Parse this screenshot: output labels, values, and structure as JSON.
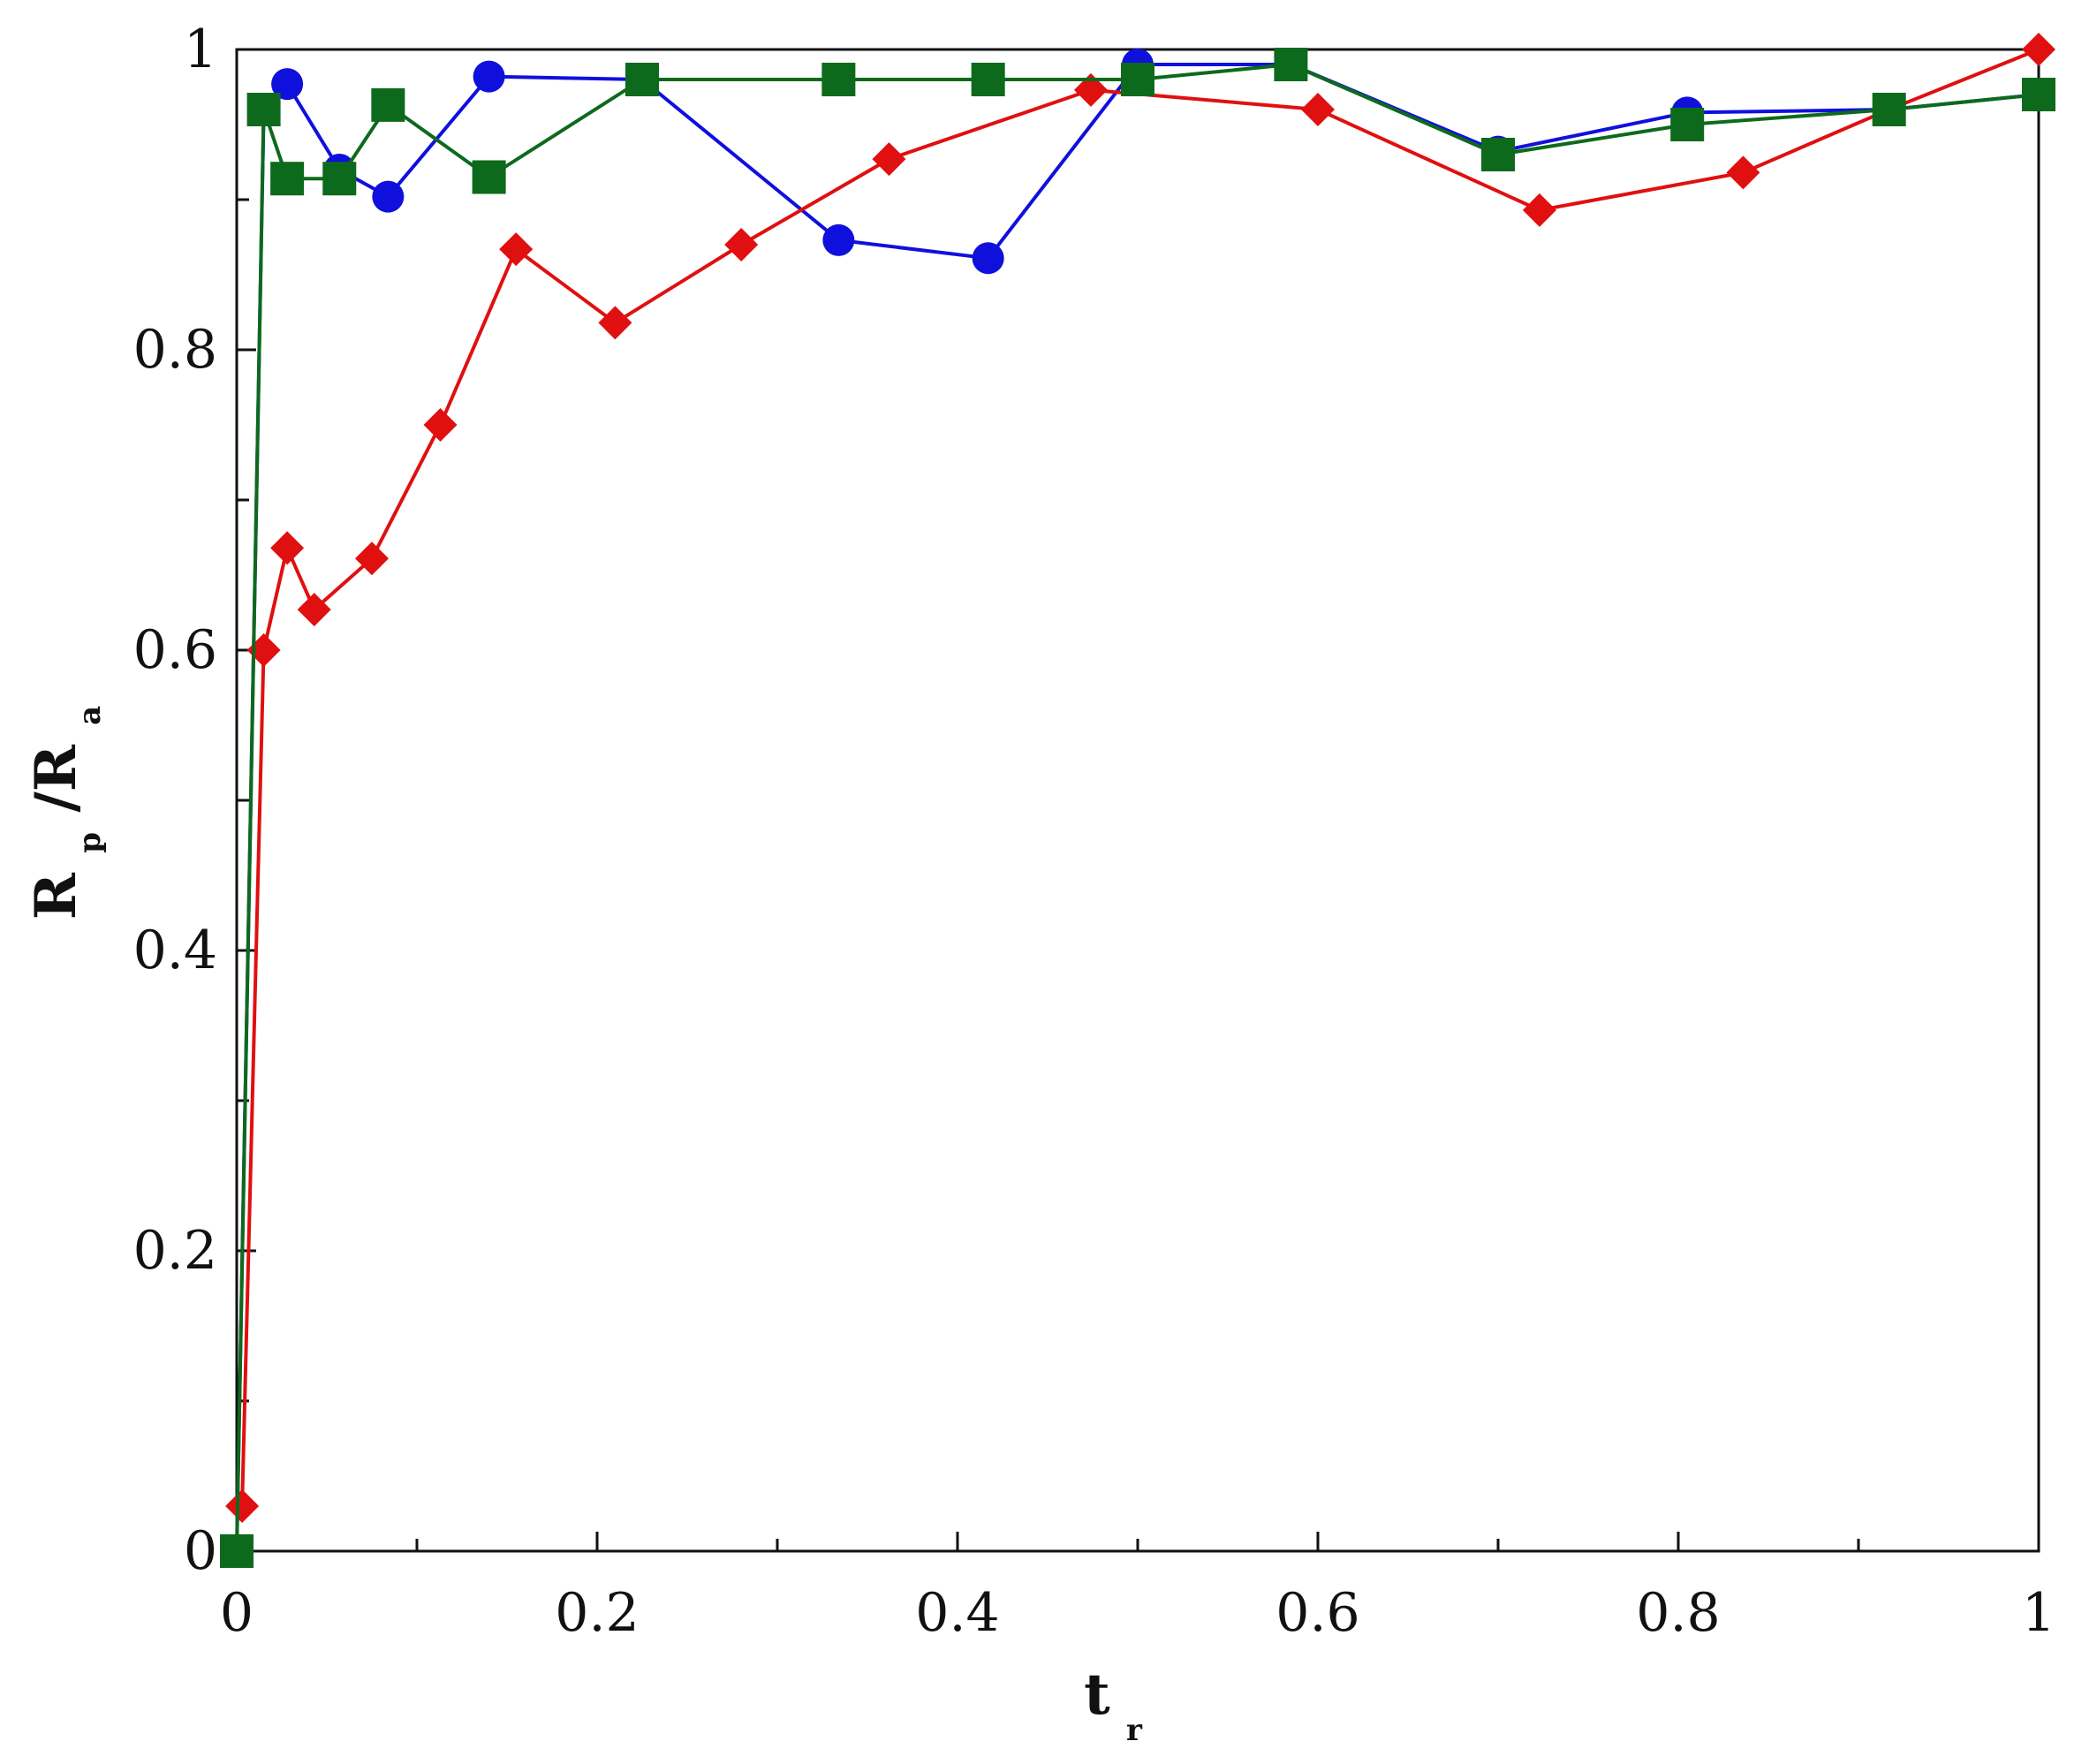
{
  "chart_data": {
    "type": "line",
    "title": "",
    "xlabel": {
      "main": "t",
      "sub": "r"
    },
    "ylabel": {
      "main": "R",
      "sub1": "p",
      "sep": "/R",
      "sub2": "a"
    },
    "xlim": [
      0,
      1
    ],
    "ylim": [
      0,
      1
    ],
    "x_ticks": [
      {
        "value": 0,
        "label": "0"
      },
      {
        "value": 0.2,
        "label": "0.2"
      },
      {
        "value": 0.4,
        "label": "0.4"
      },
      {
        "value": 0.6,
        "label": "0.6"
      },
      {
        "value": 0.8,
        "label": "0.8"
      },
      {
        "value": 1,
        "label": "1"
      }
    ],
    "y_ticks": [
      {
        "value": 0,
        "label": "0"
      },
      {
        "value": 0.2,
        "label": "0.2"
      },
      {
        "value": 0.4,
        "label": "0.4"
      },
      {
        "value": 0.6,
        "label": "0.6"
      },
      {
        "value": 0.8,
        "label": "0.8"
      },
      {
        "value": 1,
        "label": "1"
      }
    ],
    "x_minor_ticks": [
      0.1,
      0.3,
      0.5,
      0.7,
      0.9
    ],
    "y_minor_ticks": [
      0.1,
      0.3,
      0.5,
      0.7,
      0.9
    ],
    "grid": false,
    "series": [
      {
        "marker": "circle",
        "color": "#1010dd",
        "x": [
          0,
          0.015,
          0.028,
          0.057,
          0.084,
          0.14,
          0.225,
          0.334,
          0.417,
          0.5,
          0.585,
          0.7,
          0.805,
          0.917,
          1.0
        ],
        "y": [
          0,
          0.96,
          0.977,
          0.92,
          0.902,
          0.982,
          0.98,
          0.873,
          0.861,
          0.99,
          0.99,
          0.932,
          0.958,
          0.96,
          0.97
        ]
      },
      {
        "marker": "diamond",
        "color": "#e01010",
        "x": [
          0.003,
          0.015,
          0.028,
          0.043,
          0.075,
          0.113,
          0.155,
          0.21,
          0.28,
          0.362,
          0.474,
          0.6,
          0.723,
          0.836,
          0.917,
          1.0
        ],
        "y": [
          0.03,
          0.6,
          0.668,
          0.627,
          0.661,
          0.75,
          0.867,
          0.818,
          0.87,
          0.927,
          0.973,
          0.96,
          0.893,
          0.918,
          0.96,
          1.0
        ]
      },
      {
        "marker": "square",
        "color": "#0d6a1c",
        "x": [
          0,
          0.015,
          0.028,
          0.057,
          0.084,
          0.14,
          0.225,
          0.334,
          0.417,
          0.5,
          0.585,
          0.7,
          0.805,
          0.917,
          1.0
        ],
        "y": [
          0,
          0.96,
          0.914,
          0.914,
          0.963,
          0.915,
          0.98,
          0.98,
          0.98,
          0.98,
          0.99,
          0.93,
          0.95,
          0.96,
          0.97
        ]
      }
    ]
  }
}
